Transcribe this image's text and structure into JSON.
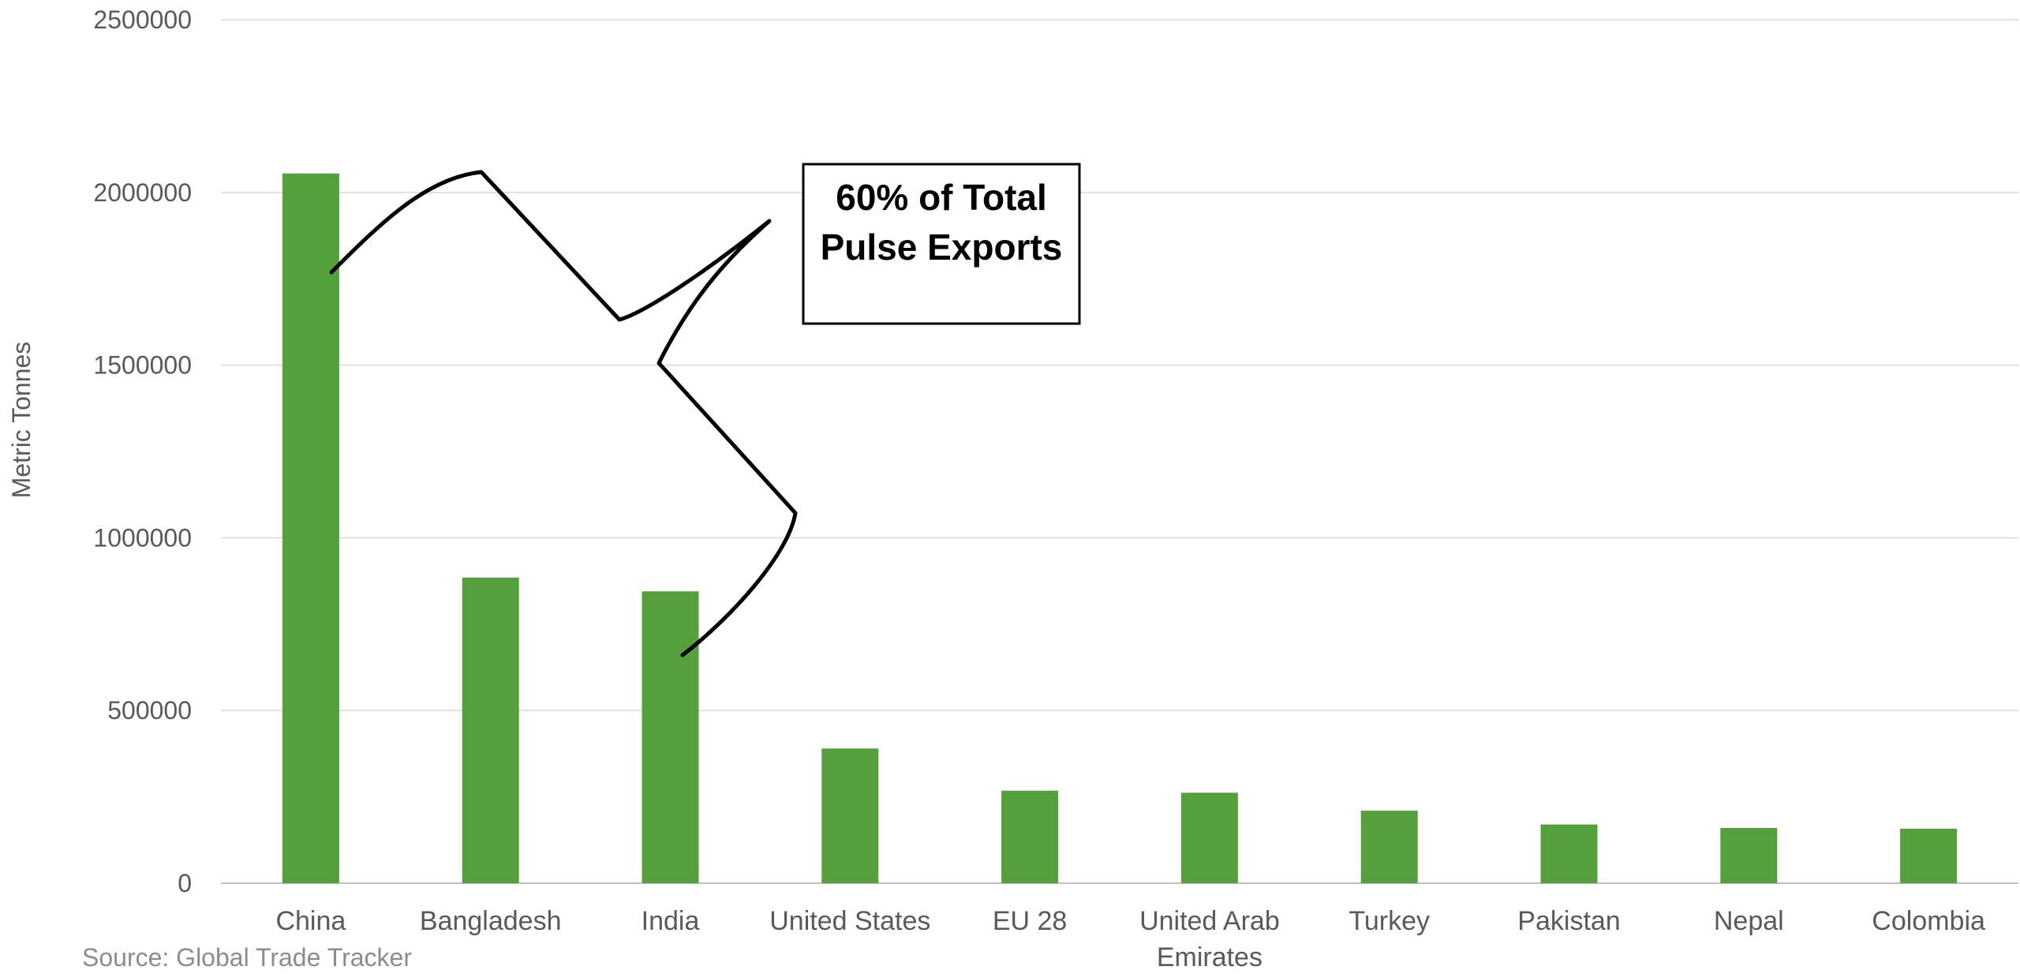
{
  "chart_data": {
    "type": "bar",
    "title": "",
    "xlabel": "",
    "ylabel": "Metric Tonnes",
    "ylim": [
      0,
      2500000
    ],
    "yticks": [
      "0",
      "500000",
      "1000000",
      "1500000",
      "2000000",
      "2500000"
    ],
    "grid": true,
    "categories": [
      "China",
      "Bangladesh",
      "India",
      "United States",
      "EU 28",
      "United Arab Emirates",
      "Turkey",
      "Pakistan",
      "Nepal",
      "Colombia"
    ],
    "values": [
      2055000,
      885000,
      845000,
      390000,
      268000,
      262000,
      210000,
      170000,
      160000,
      158000
    ],
    "bar_color": "#55a03c",
    "annotation": {
      "lines": [
        "60% of Total",
        "Pulse Exports"
      ],
      "covers": [
        "China",
        "Bangladesh",
        "India"
      ]
    },
    "source": "Source: Global Trade Tracker"
  }
}
